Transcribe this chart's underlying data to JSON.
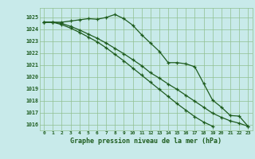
{
  "x": [
    0,
    1,
    2,
    3,
    4,
    5,
    6,
    7,
    8,
    9,
    10,
    11,
    12,
    13,
    14,
    15,
    16,
    17,
    18,
    19,
    20,
    21,
    22,
    23
  ],
  "series1": [
    1024.6,
    1024.6,
    1024.6,
    1024.7,
    1024.8,
    1024.9,
    1024.85,
    1025.0,
    1025.25,
    1024.9,
    1024.35,
    1023.55,
    1022.85,
    1022.15,
    1021.2,
    1021.2,
    1021.1,
    1020.85,
    1019.45,
    1018.05,
    1017.45,
    1016.75,
    1016.7,
    1015.85
  ],
  "series2": [
    1024.6,
    1024.6,
    1024.5,
    1024.25,
    1023.95,
    1023.6,
    1023.25,
    1022.85,
    1022.4,
    1021.95,
    1021.45,
    1020.95,
    1020.35,
    1019.9,
    1019.4,
    1018.95,
    1018.45,
    1017.95,
    1017.45,
    1016.95,
    1016.6,
    1016.3,
    1016.1,
    1015.85
  ],
  "series3": [
    1024.6,
    1024.6,
    1024.4,
    1024.1,
    1023.75,
    1023.35,
    1022.95,
    1022.45,
    1021.9,
    1021.35,
    1020.75,
    1020.15,
    1019.55,
    1018.95,
    1018.35,
    1017.75,
    1017.2,
    1016.65,
    1016.2,
    1015.85,
    null,
    null,
    null,
    null
  ],
  "ylim_min": 1015.5,
  "ylim_max": 1025.8,
  "yticks": [
    1016,
    1017,
    1018,
    1019,
    1020,
    1021,
    1022,
    1023,
    1024,
    1025
  ],
  "bg_color": "#c8eaea",
  "line_color": "#1e5c1e",
  "grid_color": "#90c090",
  "xlabel": "Graphe pression niveau de la mer (hPa)",
  "fig_width": 3.2,
  "fig_height": 2.0,
  "dpi": 100
}
